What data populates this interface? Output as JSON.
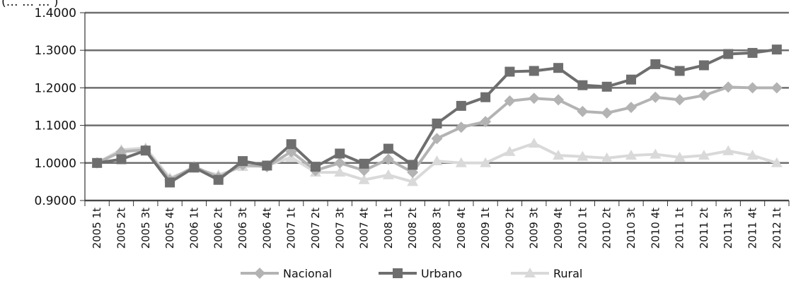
{
  "chart_data": {
    "type": "line",
    "title": "",
    "xlabel": "",
    "ylabel": "",
    "ylim": [
      0.9,
      1.4
    ],
    "y_ticks": [
      "0.9000",
      "1.0000",
      "1.1000",
      "1.2000",
      "1.3000",
      "1.4000"
    ],
    "cut_label": "(… … … )",
    "grid": "horizontal",
    "legend_position": "bottom",
    "categories": [
      "2005 1t",
      "2005 2t",
      "2005 3t",
      "2005 4t",
      "2006 1t",
      "2006 2t",
      "2006 3t",
      "2006 4t",
      "2007 1t",
      "2007 2t",
      "2007 3t",
      "2007 4t",
      "2008 1t",
      "2008 2t",
      "2008 3t",
      "2008 4t",
      "2009 1t",
      "2009 2t",
      "2009 3t",
      "2009 4t",
      "2010 1t",
      "2010 2t",
      "2010 3t",
      "2010 4t",
      "2011 1t",
      "2011 2t",
      "2011 3t",
      "2011 4t",
      "2012 1t"
    ],
    "series": [
      {
        "name": "Nacional",
        "color": "#b3b3b3",
        "marker": "diamond",
        "values": [
          1.0,
          1.03,
          1.035,
          0.955,
          0.99,
          0.962,
          0.995,
          0.99,
          1.03,
          0.98,
          1.0,
          0.98,
          1.01,
          0.975,
          1.065,
          1.095,
          1.11,
          1.165,
          1.172,
          1.168,
          1.137,
          1.133,
          1.148,
          1.175,
          1.168,
          1.18,
          1.202,
          1.2,
          1.2
        ]
      },
      {
        "name": "Urbano",
        "color": "#6e6e6e",
        "marker": "square",
        "values": [
          1.0,
          1.01,
          1.033,
          0.948,
          0.988,
          0.955,
          1.005,
          0.993,
          1.05,
          0.99,
          1.025,
          0.998,
          1.038,
          0.995,
          1.105,
          1.152,
          1.175,
          1.243,
          1.245,
          1.253,
          1.207,
          1.203,
          1.222,
          1.263,
          1.245,
          1.26,
          1.29,
          1.293,
          1.302
        ]
      },
      {
        "name": "Rural",
        "color": "#d9d9d9",
        "marker": "triangle",
        "values": [
          1.0,
          1.035,
          1.04,
          0.96,
          0.985,
          0.968,
          0.99,
          0.993,
          1.015,
          0.975,
          0.975,
          0.955,
          0.968,
          0.95,
          1.005,
          1.0,
          1.0,
          1.03,
          1.052,
          1.02,
          1.017,
          1.013,
          1.02,
          1.023,
          1.015,
          1.02,
          1.032,
          1.02,
          1.0
        ]
      }
    ]
  }
}
